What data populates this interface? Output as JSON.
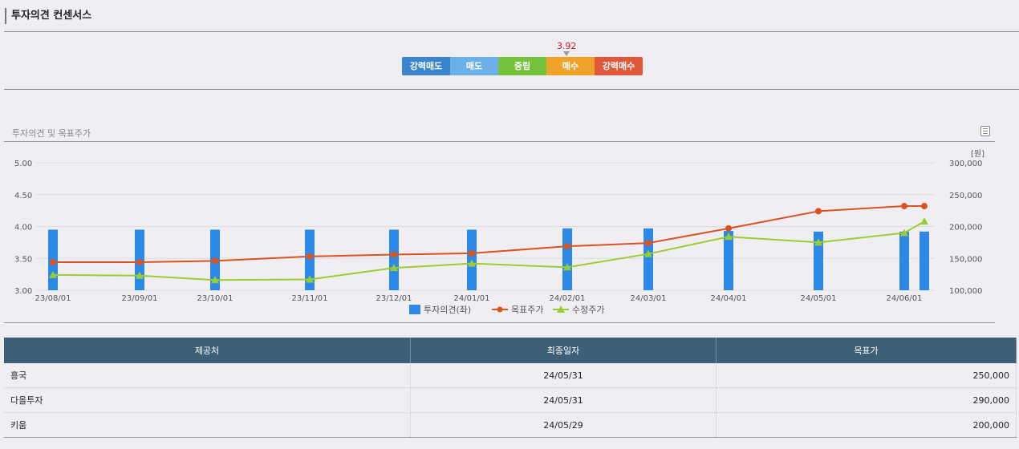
{
  "header": {
    "title": "투자의견 컨센서스"
  },
  "consensus": {
    "score": "3.92",
    "score_value": 3.92,
    "levels": [
      {
        "label": "강력매도",
        "color": "#3a85d0"
      },
      {
        "label": "매도",
        "color": "#6cb0ea"
      },
      {
        "label": "중립",
        "color": "#74c23c"
      },
      {
        "label": "매수",
        "color": "#f0a32a"
      },
      {
        "label": "강력매수",
        "color": "#e0583a"
      }
    ]
  },
  "chart_section": {
    "title": "투자의견 및 목표주가",
    "menu_icon": "document-list-icon"
  },
  "chart_data": {
    "type": "bar",
    "categories": [
      "23/08/01",
      "23/09/01",
      "23/10/01",
      "23/11/01",
      "23/12/01",
      "24/01/01",
      "24/02/01",
      "24/03/01",
      "24/04/01",
      "24/05/01",
      "24/06/01"
    ],
    "left_axis": {
      "ticks": [
        "5.00",
        "4.50",
        "4.00",
        "3.50",
        "3.00"
      ],
      "ylim": [
        3.0,
        5.0
      ]
    },
    "right_axis": {
      "unit": "[원]",
      "ticks": [
        "300,000",
        "250,000",
        "200,000",
        "150,000",
        "100,000"
      ],
      "ylim": [
        100000,
        300000
      ]
    },
    "legend": {
      "placement": "bottom"
    },
    "series": [
      {
        "name": "투자의견(좌)",
        "type": "bar",
        "axis": "left",
        "color": "#2b8ae8",
        "x": [
          "23/08/01",
          "23/09/01",
          "23/10/01",
          "23/11/01",
          "23/12/01",
          "24/01/01",
          "24/02/01",
          "24/03/01",
          "24/04/01",
          "24/05/01",
          "24/06/01",
          "24/06/08"
        ],
        "values": [
          3.95,
          3.95,
          3.95,
          3.95,
          3.95,
          3.95,
          3.97,
          3.97,
          3.93,
          3.92,
          3.92,
          3.92
        ]
      },
      {
        "name": "목표주가",
        "type": "line",
        "axis": "right",
        "color": "#d9541e",
        "marker": "circle",
        "x": [
          "23/08/01",
          "23/09/01",
          "23/10/01",
          "23/11/01",
          "23/12/01",
          "24/01/01",
          "24/02/01",
          "24/03/01",
          "24/04/01",
          "24/05/01",
          "24/06/01",
          "24/06/08"
        ],
        "values": [
          144000,
          144000,
          146000,
          153000,
          156000,
          158000,
          169000,
          174000,
          197000,
          224000,
          232000,
          232000
        ]
      },
      {
        "name": "수정주가",
        "type": "line",
        "axis": "right",
        "color": "#9acd32",
        "marker": "triangle",
        "x": [
          "23/08/01",
          "23/09/01",
          "23/10/01",
          "23/11/01",
          "23/12/01",
          "24/01/01",
          "24/02/01",
          "24/03/01",
          "24/04/01",
          "24/05/01",
          "24/06/01",
          "24/06/08"
        ],
        "values": [
          124000,
          123000,
          116000,
          117000,
          135000,
          142000,
          136000,
          157000,
          184000,
          175000,
          190000,
          208000
        ]
      }
    ]
  },
  "table": {
    "headers": [
      "제공처",
      "최종일자",
      "목표가"
    ],
    "rows": [
      [
        "흥국",
        "24/05/31",
        "250,000"
      ],
      [
        "다올투자",
        "24/05/31",
        "290,000"
      ],
      [
        "키움",
        "24/05/29",
        "200,000"
      ]
    ]
  }
}
